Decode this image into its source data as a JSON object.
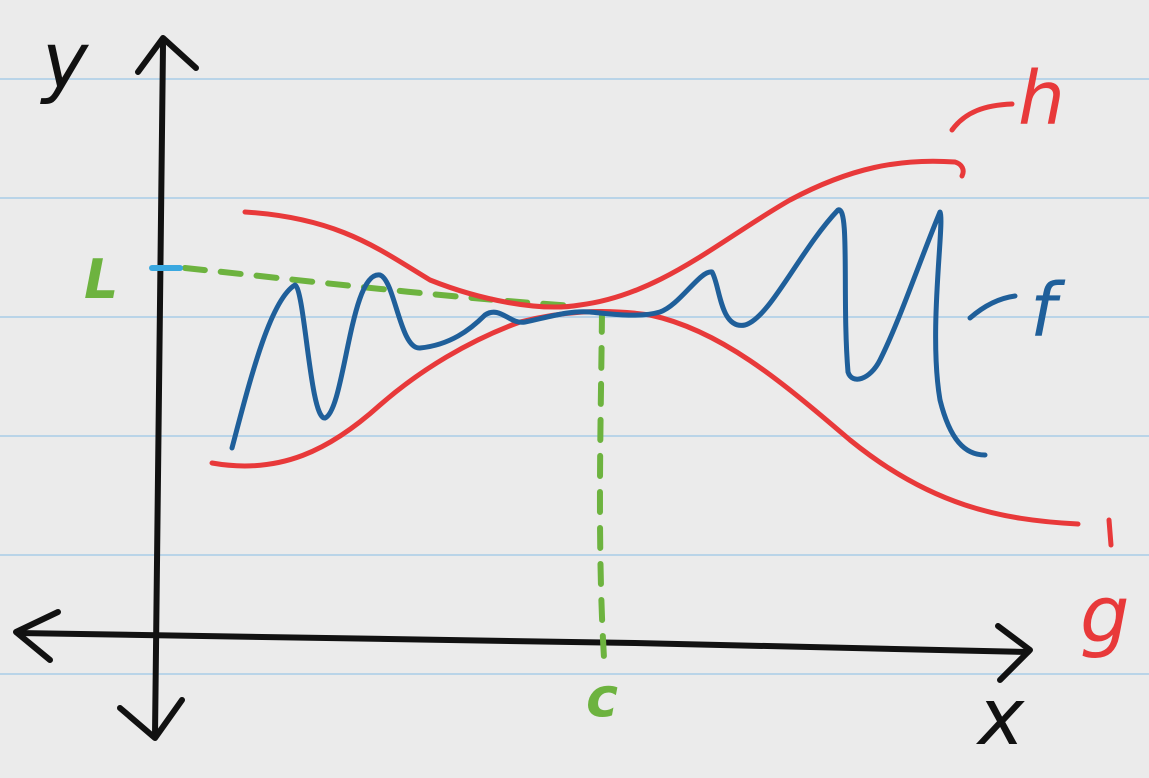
{
  "labels": {
    "y_axis": "y",
    "x_axis": "x",
    "limit_L": "L",
    "point_c": "c",
    "curve_h": "h",
    "curve_f": "f",
    "curve_g": "g"
  },
  "colors": {
    "background": "#ebebeb",
    "ruled_lines": "#b9d4e8",
    "axes": "#111111",
    "h": "#e8393a",
    "g": "#e8393a",
    "f": "#1f5f9a",
    "guide": "#6db33f",
    "L_tick": "#3aa8e0"
  }
}
